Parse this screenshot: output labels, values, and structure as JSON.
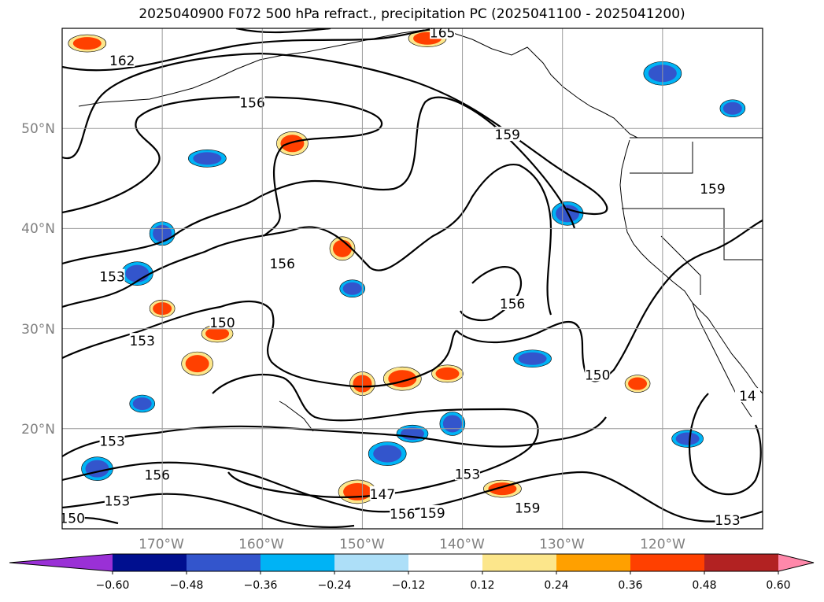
{
  "chart_data": {
    "type": "contour_map",
    "title": "2025040900 F072 500 hPa refract., precipitation PC (2025041100 - 2025041200)",
    "lon_ticks": [
      "170°W",
      "160°W",
      "150°W",
      "140°W",
      "130°W",
      "120°W"
    ],
    "lat_ticks": [
      "50°N",
      "40°N",
      "30°N",
      "20°N"
    ],
    "lon_range": [
      -180,
      -110
    ],
    "lat_range": [
      10,
      60
    ],
    "grid": true,
    "contour_labels": [
      {
        "text": "162",
        "lon": -174,
        "lat": 56.7
      },
      {
        "text": "165",
        "lon": -142,
        "lat": 59.5
      },
      {
        "text": "156",
        "lon": -161,
        "lat": 52.5
      },
      {
        "text": "159",
        "lon": -135.5,
        "lat": 49.3
      },
      {
        "text": "159",
        "lon": -115,
        "lat": 43.9
      },
      {
        "text": "156",
        "lon": -158,
        "lat": 36.4
      },
      {
        "text": "153",
        "lon": -175,
        "lat": 35.1
      },
      {
        "text": "150",
        "lon": -164,
        "lat": 30.5
      },
      {
        "text": "153",
        "lon": -172,
        "lat": 28.7
      },
      {
        "text": "156",
        "lon": -135,
        "lat": 32.4
      },
      {
        "text": "150",
        "lon": -126.5,
        "lat": 25.3
      },
      {
        "text": "14",
        "lon": -111.5,
        "lat": 23.2
      },
      {
        "text": "153",
        "lon": -175,
        "lat": 18.7
      },
      {
        "text": "156",
        "lon": -170.5,
        "lat": 15.3
      },
      {
        "text": "153",
        "lon": -139.5,
        "lat": 15.4
      },
      {
        "text": "153",
        "lon": -174.5,
        "lat": 12.7
      },
      {
        "text": "147",
        "lon": -148,
        "lat": 13.4
      },
      {
        "text": "156",
        "lon": -146,
        "lat": 11.4
      },
      {
        "text": "159",
        "lon": -143,
        "lat": 11.5
      },
      {
        "text": "159",
        "lon": -133.5,
        "lat": 12.0
      },
      {
        "text": "150",
        "lon": -179,
        "lat": 11.0
      },
      {
        "text": "153",
        "lon": -113.5,
        "lat": 10.8
      }
    ],
    "colorbar": {
      "ticks": [
        "−0.60",
        "−0.48",
        "−0.36",
        "−0.24",
        "−0.12",
        "0.12",
        "0.24",
        "0.36",
        "0.48",
        "0.60"
      ],
      "bins": [
        {
          "from": null,
          "to": -0.6,
          "color": "#9a30d6"
        },
        {
          "from": -0.6,
          "to": -0.48,
          "color": "#000f8f"
        },
        {
          "from": -0.48,
          "to": -0.36,
          "color": "#3355cc"
        },
        {
          "from": -0.36,
          "to": -0.24,
          "color": "#00b3f5"
        },
        {
          "from": -0.24,
          "to": -0.12,
          "color": "#addff8"
        },
        {
          "from": -0.12,
          "to": 0.12,
          "color": "#ffffff"
        },
        {
          "from": 0.12,
          "to": 0.24,
          "color": "#fce68b"
        },
        {
          "from": 0.24,
          "to": 0.36,
          "color": "#ffa000"
        },
        {
          "from": 0.36,
          "to": 0.48,
          "color": "#ff4000"
        },
        {
          "from": 0.48,
          "to": 0.6,
          "color": "#b22222"
        },
        {
          "from": 0.6,
          "to": null,
          "color": "#ff88aa"
        }
      ],
      "extend": "both"
    },
    "precip_blobs": [
      {
        "lon": -151,
        "lat": 34.0,
        "color": "#3355cc"
      },
      {
        "lon": -172.5,
        "lat": 35.5,
        "color": "#3355cc"
      },
      {
        "lon": -165.5,
        "lat": 47.0,
        "color": "#3355cc"
      },
      {
        "lon": -170,
        "lat": 39.5,
        "color": "#3355cc"
      },
      {
        "lon": -117.5,
        "lat": 19.0,
        "color": "#3355cc"
      },
      {
        "lon": -120,
        "lat": 55.5,
        "color": "#3355cc"
      },
      {
        "lon": -113,
        "lat": 52.0,
        "color": "#3355cc"
      },
      {
        "lon": -129.5,
        "lat": 41.5,
        "color": "#3355cc"
      },
      {
        "lon": -133,
        "lat": 27.0,
        "color": "#3355cc"
      },
      {
        "lon": -141,
        "lat": 20.5,
        "color": "#3355cc"
      },
      {
        "lon": -145,
        "lat": 19.5,
        "color": "#3355cc"
      },
      {
        "lon": -147.5,
        "lat": 17.5,
        "color": "#3355cc"
      },
      {
        "lon": -172,
        "lat": 22.5,
        "color": "#3355cc"
      },
      {
        "lon": -176.5,
        "lat": 16.0,
        "color": "#3355cc"
      },
      {
        "lon": -143.5,
        "lat": 59.0,
        "color": "#ff4000"
      },
      {
        "lon": -152,
        "lat": 38.0,
        "color": "#ff4000"
      },
      {
        "lon": -164.5,
        "lat": 29.5,
        "color": "#ff4000"
      },
      {
        "lon": -146,
        "lat": 25.0,
        "color": "#ff4000"
      },
      {
        "lon": -170,
        "lat": 32.0,
        "color": "#ff4000"
      },
      {
        "lon": -166.5,
        "lat": 26.5,
        "color": "#ff4000"
      },
      {
        "lon": -177.5,
        "lat": 58.5,
        "color": "#ff4000"
      },
      {
        "lon": -150,
        "lat": 24.5,
        "color": "#ff4000"
      },
      {
        "lon": -141.5,
        "lat": 25.5,
        "color": "#ff4000"
      },
      {
        "lon": -150.5,
        "lat": 13.7,
        "color": "#ff4000"
      },
      {
        "lon": -122.5,
        "lat": 24.5,
        "color": "#ff4000"
      },
      {
        "lon": -157,
        "lat": 48.5,
        "color": "#ff4000"
      },
      {
        "lon": -136,
        "lat": 14.0,
        "color": "#ff4000"
      }
    ]
  }
}
